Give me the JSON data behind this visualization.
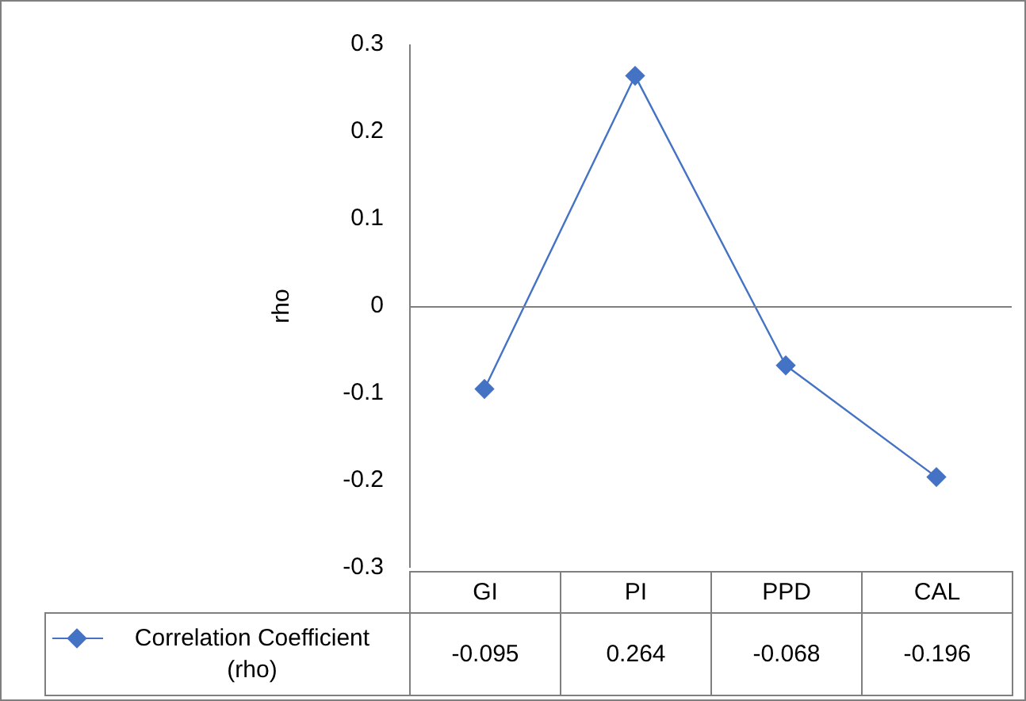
{
  "chart_data": {
    "type": "line",
    "ylabel": "rho",
    "categories": [
      "GI",
      "PI",
      "PPD",
      "CAL"
    ],
    "series": [
      {
        "name": "Correlation Coefficient (rho)",
        "color": "#4472c4",
        "values": [
          -0.095,
          0.264,
          -0.068,
          -0.196
        ]
      }
    ],
    "ylim": [
      -0.3,
      0.3
    ],
    "yticks": [
      {
        "value": -0.3,
        "label": "-0.3"
      },
      {
        "value": -0.2,
        "label": "-0.2"
      },
      {
        "value": -0.1,
        "label": "-0.1"
      },
      {
        "value": 0,
        "label": "0"
      },
      {
        "value": 0.1,
        "label": "0.1"
      },
      {
        "value": 0.2,
        "label": "0.2"
      },
      {
        "value": 0.3,
        "label": "0.3"
      }
    ],
    "ref_lines": [
      {
        "axis": "y",
        "value": 0,
        "color": "#7f7f7f"
      }
    ],
    "grid": false,
    "legend": "bottom",
    "marker": "diamond",
    "line_style": "solid",
    "data_labels": true
  }
}
